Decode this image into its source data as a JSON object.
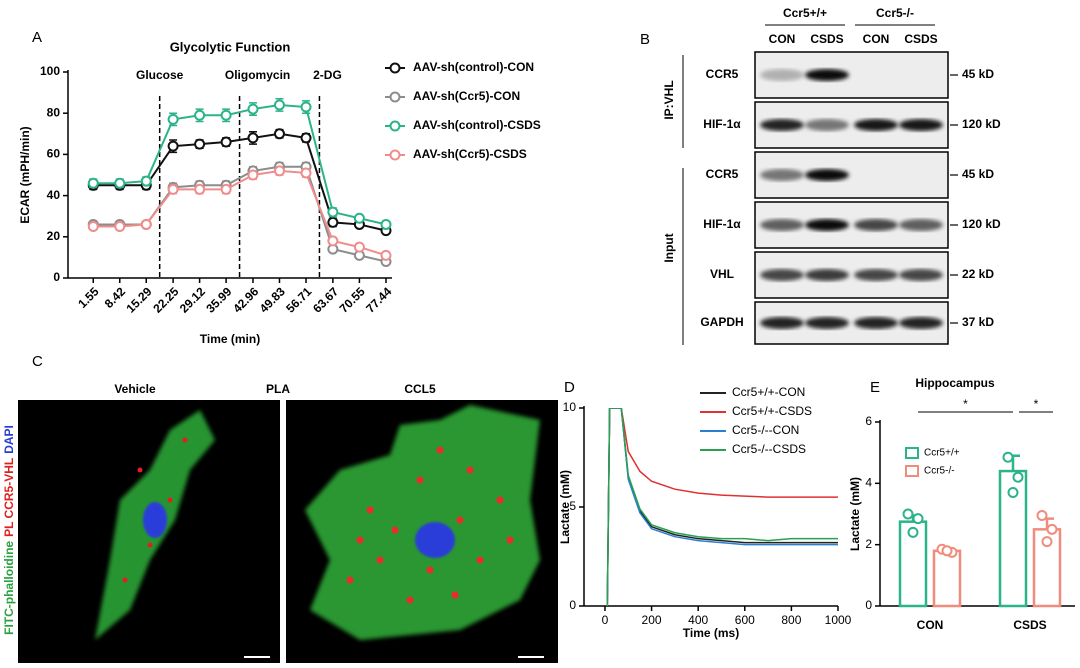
{
  "chart_data": [
    {
      "type": "line",
      "panel": "A",
      "title": "Glycolytic Function",
      "annotations": [
        "Glucose",
        "Oligomycin",
        "2-DG"
      ],
      "dashed_lines": [
        18.77,
        39.48,
        60.19
      ],
      "x_label": "Time (min)",
      "y_label": "ECAR (mPH/min)",
      "x": [
        1.55,
        8.42,
        15.29,
        22.25,
        29.12,
        35.99,
        42.96,
        49.83,
        56.71,
        63.67,
        70.55,
        77.44
      ],
      "xlim": [
        -5,
        79
      ],
      "xticks": [
        1.55,
        8.42,
        15.29,
        22.25,
        29.12,
        35.99,
        42.96,
        49.83,
        56.71,
        63.67,
        70.55,
        77.44
      ],
      "ylim": [
        0,
        100
      ],
      "yticks": [
        0,
        20,
        40,
        60,
        80,
        100
      ],
      "series": [
        {
          "name": "AAV-sh(control)-CON",
          "color": "#111111",
          "values": [
            45,
            45,
            45,
            64,
            65,
            66,
            68,
            70,
            68,
            27,
            26,
            23
          ],
          "errors": [
            2,
            2,
            2,
            3,
            2,
            2,
            3,
            2,
            2,
            2,
            1,
            1
          ]
        },
        {
          "name": "AAV-sh(Ccr5)-CON",
          "color": "#8c8c8c",
          "values": [
            26,
            26,
            26,
            44,
            45,
            45,
            52,
            54,
            54,
            14,
            11,
            8
          ],
          "errors": [
            1,
            1,
            1,
            2,
            2,
            2,
            2,
            2,
            2,
            1,
            1,
            1
          ]
        },
        {
          "name": "AAV-sh(control)-CSDS",
          "color": "#2bb38a",
          "values": [
            46,
            46,
            47,
            77,
            79,
            79,
            82,
            84,
            83,
            32,
            29,
            26
          ],
          "errors": [
            2,
            2,
            2,
            3,
            3,
            3,
            3,
            3,
            3,
            2,
            1,
            1
          ]
        },
        {
          "name": "AAV-sh(Ccr5)-CSDS",
          "color": "#f08c8c",
          "values": [
            25,
            25,
            26,
            43,
            43,
            43,
            50,
            52,
            51,
            18,
            15,
            11
          ],
          "errors": [
            1,
            1,
            1,
            2,
            2,
            2,
            2,
            2,
            2,
            1,
            1,
            1
          ]
        }
      ]
    },
    {
      "type": "trace",
      "panel": "D",
      "x_label": "Time (ms)",
      "y_label": "Lactate (mM)",
      "x": [
        10,
        20,
        70,
        100,
        150,
        200,
        300,
        400,
        500,
        600,
        700,
        800,
        900,
        1000
      ],
      "xlim": [
        -90,
        1000
      ],
      "xticks": [
        0,
        200,
        400,
        600,
        800,
        1000
      ],
      "ylim": [
        0,
        10
      ],
      "yticks": [
        0,
        5,
        10
      ],
      "series": [
        {
          "name": "Ccr5+/+-CON",
          "color": "#222222",
          "values": [
            0,
            10,
            10,
            6.5,
            4.8,
            4.0,
            3.6,
            3.4,
            3.3,
            3.2,
            3.2,
            3.2,
            3.2,
            3.2
          ]
        },
        {
          "name": "Ccr5+/+-CSDS",
          "color": "#e03030",
          "values": [
            0,
            10,
            10,
            7.8,
            6.8,
            6.3,
            5.9,
            5.7,
            5.6,
            5.55,
            5.5,
            5.5,
            5.5,
            5.5
          ]
        },
        {
          "name": "Ccr5-/--CON",
          "color": "#2a7fd0",
          "values": [
            0,
            10,
            10,
            6.4,
            4.7,
            3.9,
            3.5,
            3.3,
            3.2,
            3.1,
            3.1,
            3.1,
            3.1,
            3.1
          ]
        },
        {
          "name": "Ccr5-/--CSDS",
          "color": "#2aa050",
          "values": [
            0,
            10,
            10,
            6.6,
            4.9,
            4.1,
            3.7,
            3.5,
            3.4,
            3.4,
            3.3,
            3.4,
            3.4,
            3.4
          ]
        }
      ]
    },
    {
      "type": "bar",
      "panel": "E",
      "title": "Hippocampus",
      "y_label": "Lactate (mM)",
      "categories": [
        "CON",
        "CSDS"
      ],
      "ylim": [
        0,
        6
      ],
      "yticks": [
        0,
        2,
        4,
        6
      ],
      "significance": [
        "*",
        "*"
      ],
      "series": [
        {
          "name": "Ccr5+/+",
          "color": "#2bb38a",
          "values": [
            2.75,
            4.4
          ],
          "errors": [
            0.2,
            0.5
          ],
          "points": [
            [
              3.0,
              2.85,
              2.4
            ],
            [
              4.85,
              4.2,
              3.7
            ]
          ]
        },
        {
          "name": "Ccr5-/-",
          "color": "#f08c7c",
          "values": [
            1.8,
            2.5
          ],
          "errors": [
            0.05,
            0.35
          ],
          "points": [
            [
              1.85,
              1.75,
              1.8
            ],
            [
              2.95,
              2.5,
              2.1
            ]
          ]
        }
      ]
    }
  ],
  "blot": {
    "panel": "B",
    "genotypes": [
      "Ccr5+/+",
      "Ccr5-/-"
    ],
    "lanes": [
      "CON",
      "CSDS",
      "CON",
      "CSDS"
    ],
    "groups": [
      "IP:VHL",
      "Input"
    ],
    "rows": [
      {
        "label": "CCR5",
        "size": "45 kD"
      },
      {
        "label": "HIF-1α",
        "size": "120 kD"
      },
      {
        "label": "CCR5",
        "size": "45 kD"
      },
      {
        "label": "HIF-1α",
        "size": "120 kD"
      },
      {
        "label": "VHL",
        "size": "22 kD"
      },
      {
        "label": "GAPDH",
        "size": "37 kD"
      }
    ]
  },
  "microscopy": {
    "panel": "C",
    "conditions": [
      "Vehicle",
      "PLA",
      "CCL5"
    ],
    "stains": [
      "FITC-phalloidine",
      "PL CCR5-VHL",
      "DAPI"
    ]
  }
}
